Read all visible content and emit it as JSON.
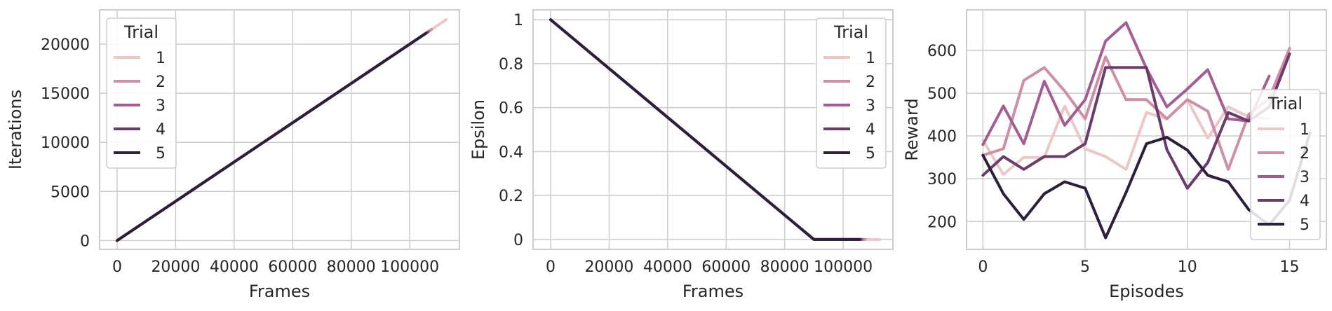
{
  "chart_data": [
    {
      "type": "line",
      "xlabel": "Frames",
      "ylabel": "Iterations",
      "xlim": [
        -6000,
        117000
      ],
      "ylim": [
        -900,
        23500
      ],
      "xticks": [
        0,
        20000,
        40000,
        60000,
        80000,
        100000
      ],
      "yticks": [
        0,
        5000,
        10000,
        15000,
        20000
      ],
      "grid": true,
      "legend": {
        "title": "Trial",
        "placement": "top-left"
      },
      "series": [
        {
          "name": "1",
          "color": "#ebc7c5",
          "x": [
            0,
            112500
          ],
          "y": [
            0,
            22500
          ]
        },
        {
          "name": "2",
          "color": "#d08ea6",
          "x": [
            0,
            107500
          ],
          "y": [
            0,
            21500
          ]
        },
        {
          "name": "3",
          "color": "#a45d91",
          "x": [
            0,
            106500
          ],
          "y": [
            0,
            21300
          ]
        },
        {
          "name": "4",
          "color": "#6b3b6b",
          "x": [
            0,
            106000
          ],
          "y": [
            0,
            21200
          ]
        },
        {
          "name": "5",
          "color": "#2d1e3e",
          "x": [
            0,
            105500
          ],
          "y": [
            0,
            21100
          ]
        }
      ]
    },
    {
      "type": "line",
      "xlabel": "Frames",
      "ylabel": "Epsilon",
      "xlim": [
        -6000,
        117000
      ],
      "ylim": [
        -0.045,
        1.045
      ],
      "xticks": [
        0,
        20000,
        40000,
        60000,
        80000,
        100000
      ],
      "yticks": [
        0.0,
        0.2,
        0.4,
        0.6,
        0.8,
        1.0
      ],
      "grid": true,
      "legend": {
        "title": "Trial",
        "placement": "top-right"
      },
      "series": [
        {
          "name": "1",
          "color": "#ebc7c5",
          "x": [
            0,
            90000,
            112500
          ],
          "y": [
            1.0,
            0.0,
            0.0
          ]
        },
        {
          "name": "2",
          "color": "#d08ea6",
          "x": [
            0,
            90000,
            107500
          ],
          "y": [
            1.0,
            0.0,
            0.0
          ]
        },
        {
          "name": "3",
          "color": "#a45d91",
          "x": [
            0,
            90000,
            106500
          ],
          "y": [
            1.0,
            0.0,
            0.0
          ]
        },
        {
          "name": "4",
          "color": "#6b3b6b",
          "x": [
            0,
            90000,
            106000
          ],
          "y": [
            1.0,
            0.0,
            0.0
          ]
        },
        {
          "name": "5",
          "color": "#2d1e3e",
          "x": [
            0,
            90000,
            105500
          ],
          "y": [
            1.0,
            0.0,
            0.0
          ]
        }
      ]
    },
    {
      "type": "line",
      "xlabel": "Episodes",
      "ylabel": "Reward",
      "xlim": [
        -0.8,
        16.8
      ],
      "ylim": [
        135,
        695
      ],
      "xticks": [
        0,
        5,
        10,
        15
      ],
      "yticks": [
        200,
        300,
        400,
        500,
        600
      ],
      "grid": true,
      "legend": {
        "title": "Trial",
        "placement": "lower-right"
      },
      "series": [
        {
          "name": "1",
          "color": "#ebc7c5",
          "x": [
            0,
            1,
            2,
            3,
            4,
            5,
            6,
            7,
            8,
            9,
            10,
            11,
            12,
            13,
            14
          ],
          "y": [
            390,
            310,
            350,
            350,
            470,
            370,
            352,
            322,
            455,
            440,
            485,
            395,
            468,
            445,
            440
          ]
        },
        {
          "name": "2",
          "color": "#d08ea6",
          "x": [
            0,
            1,
            2,
            3,
            4,
            5,
            6,
            7,
            8,
            9,
            10,
            11,
            12,
            13,
            14,
            15
          ],
          "y": [
            355,
            370,
            530,
            560,
            505,
            440,
            585,
            485,
            485,
            440,
            485,
            458,
            322,
            450,
            488,
            605
          ]
        },
        {
          "name": "3",
          "color": "#a45d91",
          "x": [
            0,
            1,
            2,
            3,
            4,
            5,
            6,
            7,
            8,
            9,
            10,
            11,
            12,
            13,
            14
          ],
          "y": [
            380,
            470,
            382,
            528,
            425,
            485,
            622,
            665,
            558,
            468,
            510,
            555,
            440,
            435,
            540
          ]
        },
        {
          "name": "4",
          "color": "#6b3b6b",
          "x": [
            0,
            1,
            2,
            3,
            4,
            5,
            6,
            7,
            8,
            9,
            10,
            11,
            12,
            13,
            14,
            15
          ],
          "y": [
            308,
            352,
            322,
            352,
            352,
            382,
            560,
            560,
            560,
            368,
            278,
            338,
            455,
            435,
            468,
            592
          ]
        },
        {
          "name": "5",
          "color": "#2d1e3e",
          "x": [
            0,
            1,
            2,
            3,
            4,
            5,
            6,
            7,
            8,
            9,
            10,
            11,
            12,
            13,
            14,
            15,
            16
          ],
          "y": [
            355,
            265,
            205,
            265,
            293,
            278,
            162,
            268,
            382,
            397,
            367,
            308,
            293,
            228,
            192,
            250,
            408
          ]
        }
      ]
    }
  ]
}
